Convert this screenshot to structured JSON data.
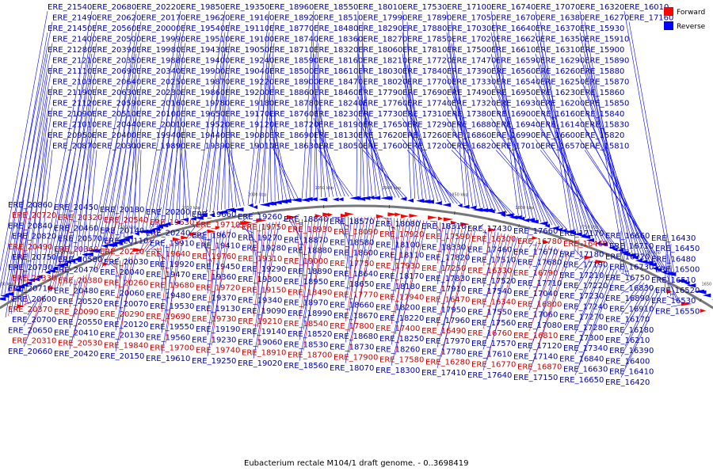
{
  "caption": "Eubacterium rectale M104/1 draft genome. - 0..3698419",
  "legend": [
    {
      "label": "Forward",
      "color": "#ff0000"
    },
    {
      "label": "Reverse",
      "color": "#0000ff"
    }
  ],
  "colors": {
    "forward": "#ff0000",
    "reverse": "#0000ff",
    "backbone": "#777777"
  },
  "ticks": [
    "2200 kbp",
    "2150 kbp",
    "2100 kbp",
    "2050 kbp",
    "2000 kbp",
    "1950 kbp",
    "1900 kbp",
    "1850 kbp",
    "1800 kbp",
    "1750 kbp",
    "1700 kbp",
    "1650 kbp"
  ],
  "top_labels": [
    "ERE_21540",
    "ERE_21490",
    "ERE_21450",
    "ERE_21400",
    "ERE_21280",
    "ERE_21210",
    "ERE_21110",
    "ERE_21030",
    "ERE_21190",
    "ERE_21120",
    "ERE_21090",
    "ERE_21010",
    "ERE_20950",
    "ERE_20870",
    "ERE_20680",
    "ERE_20620",
    "ERE_20560",
    "ERE_20500",
    "ERE_20390",
    "ERE_20350",
    "ERE_20690",
    "ERE_20640",
    "ERE_20630",
    "ERE_20590",
    "ERE_20510",
    "ERE_20440",
    "ERE_20400",
    "ERE_20300",
    "ERE_20220",
    "ERE_20170",
    "ERE_20000",
    "ERE_19990",
    "ERE_19980",
    "ERE_19880",
    "ERE_20340",
    "ERE_20250",
    "ERE_20230",
    "ERE_20160",
    "ERE_20100",
    "ERE_20010",
    "ERE_19940",
    "ERE_19890",
    "ERE_19850",
    "ERE_19620",
    "ERE_19540",
    "ERE_19510",
    "ERE_19430",
    "ERE_19400",
    "ERE_19900",
    "ERE_19870",
    "ERE_19860",
    "ERE_19780",
    "ERE_19650",
    "ERE_19520",
    "ERE_19440",
    "ERE_19390",
    "ERE_19350",
    "ERE_19160",
    "ERE_19110",
    "ERE_19100",
    "ERE_19050",
    "ERE_19240",
    "ERE_19040",
    "ERE_19220",
    "ERE_19200",
    "ERE_19180",
    "ERE_19170",
    "ERE_19120",
    "ERE_19080",
    "ERE_19010",
    "ERE_18960",
    "ERE_18920",
    "ERE_18770",
    "ERE_18740",
    "ERE_18710",
    "ERE_18590",
    "ERE_18500",
    "ERE_18900",
    "ERE_18860",
    "ERE_18780",
    "ERE_18760",
    "ERE_18720",
    "ERE_18690",
    "ERE_18630",
    "ERE_18550",
    "ERE_18510",
    "ERE_18480",
    "ERE_18360",
    "ERE_18320",
    "ERE_18160",
    "ERE_18610",
    "ERE_18470",
    "ERE_18460",
    "ERE_18240",
    "ERE_18230",
    "ERE_18190",
    "ERE_18130",
    "ERE_18050",
    "ERE_18010",
    "ERE_17990",
    "ERE_18290",
    "ERE_18270",
    "ERE_18060",
    "ERE_18210",
    "ERE_18030",
    "ERE_18020",
    "ERE_17790",
    "ERE_17760",
    "ERE_17730",
    "ERE_17650",
    "ERE_17620",
    "ERE_17600",
    "ERE_17530",
    "ERE_17890",
    "ERE_17880",
    "ERE_17850",
    "ERE_17810",
    "ERE_17720",
    "ERE_17840",
    "ERE_17700",
    "ERE_17690",
    "ERE_17740",
    "ERE_17310",
    "ERE_17290",
    "ERE_17260",
    "ERE_17200",
    "ERE_17100",
    "ERE_17050",
    "ERE_17030",
    "ERE_17020",
    "ERE_17500",
    "ERE_17470",
    "ERE_17390",
    "ERE_17330",
    "ERE_17490",
    "ERE_17320",
    "ERE_17380",
    "ERE_16880",
    "ERE_16860",
    "ERE_16820",
    "ERE_16740",
    "ERE_16700",
    "ERE_16640",
    "ERE_16620",
    "ERE_16610",
    "ERE_16590",
    "ERE_16560",
    "ERE_16540",
    "ERE_16950",
    "ERE_16930",
    "ERE_16900",
    "ERE_16940",
    "ERE_16990",
    "ERE_17010",
    "ERE_17070",
    "ERE_16380",
    "ERE_16370",
    "ERE_16350",
    "ERE_16310",
    "ERE_16290",
    "ERE_16260",
    "ERE_16250",
    "ERE_16230",
    "ERE_16200",
    "ERE_16160",
    "ERE_16140",
    "ERE_16600",
    "ERE_16570",
    "ERE_16320",
    "ERE_16270",
    "ERE_15930",
    "ERE_15910",
    "ERE_15900",
    "ERE_15890",
    "ERE_15880",
    "ERE_15870",
    "ERE_15860",
    "ERE_15850",
    "ERE_15840",
    "ERE_15830",
    "ERE_15820",
    "ERE_15810",
    "ERE_16010",
    "ERE_17160"
  ],
  "bottom_blue": [
    "ERE_20860",
    "ERE_20840",
    "ERE_20820",
    "ERE_20750",
    "ERE_20730",
    "ERE_20710",
    "ERE_20600",
    "ERE_20700",
    "ERE_20650",
    "ERE_20660",
    "ERE_20450",
    "ERE_20460",
    "ERE_20570",
    "ERE_20580",
    "ERE_20470",
    "ERE_20480",
    "ERE_20520",
    "ERE_20550",
    "ERE_20410",
    "ERE_20420",
    "ERE_20180",
    "ERE_20140",
    "ERE_20110",
    "ERE_20030",
    "ERE_20040",
    "ERE_20060",
    "ERE_20070",
    "ERE_20120",
    "ERE_20130",
    "ERE_20150",
    "ERE_20200",
    "ERE_20240",
    "ERE_19910",
    "ERE_19920",
    "ERE_19470",
    "ERE_19480",
    "ERE_19530",
    "ERE_19550",
    "ERE_19560",
    "ERE_19610",
    "ERE_19660",
    "ERE_19670",
    "ERE_19410",
    "ERE_19450",
    "ERE_19360",
    "ERE_19370",
    "ERE_19130",
    "ERE_19190",
    "ERE_19230",
    "ERE_19250",
    "ERE_19260",
    "ERE_19270",
    "ERE_19280",
    "ERE_19290",
    "ERE_19300",
    "ERE_19340",
    "ERE_19090",
    "ERE_19140",
    "ERE_19060",
    "ERE_19020",
    "ERE_18840",
    "ERE_18870",
    "ERE_18880",
    "ERE_18890",
    "ERE_18950",
    "ERE_18970",
    "ERE_18990",
    "ERE_18520",
    "ERE_18530",
    "ERE_18560",
    "ERE_18570",
    "ERE_18580",
    "ERE_18600",
    "ERE_18640",
    "ERE_18650",
    "ERE_18660",
    "ERE_18670",
    "ERE_18680",
    "ERE_18730",
    "ERE_18070",
    "ERE_18080",
    "ERE_18100",
    "ERE_18110",
    "ERE_18170",
    "ERE_18180",
    "ERE_18200",
    "ERE_18220",
    "ERE_18250",
    "ERE_18260",
    "ERE_18300",
    "ERE_18310",
    "ERE_18330",
    "ERE_17820",
    "ERE_17830",
    "ERE_17910",
    "ERE_17950",
    "ERE_17960",
    "ERE_17970",
    "ERE_17780",
    "ERE_17410",
    "ERE_17430",
    "ERE_17460",
    "ERE_17510",
    "ERE_17520",
    "ERE_17540",
    "ERE_17550",
    "ERE_17560",
    "ERE_17570",
    "ERE_17610",
    "ERE_17640",
    "ERE_17660",
    "ERE_17670",
    "ERE_17680",
    "ERE_17710",
    "ERE_17040",
    "ERE_17060",
    "ERE_17080",
    "ERE_17120",
    "ERE_17140",
    "ERE_17150",
    "ERE_17170",
    "ERE_17180",
    "ERE_17190",
    "ERE_17210",
    "ERE_17220",
    "ERE_17230",
    "ERE_17240",
    "ERE_17270",
    "ERE_17280",
    "ERE_17300",
    "ERE_17340",
    "ERE_16840",
    "ERE_16630",
    "ERE_16650",
    "ERE_16660",
    "ERE_16710",
    "ERE_16720",
    "ERE_16730",
    "ERE_16750",
    "ERE_16830",
    "ERE_16890",
    "ERE_16910",
    "ERE_16170",
    "ERE_16180",
    "ERE_16210",
    "ERE_16390",
    "ERE_16400",
    "ERE_16410",
    "ERE_16420",
    "ERE_16430",
    "ERE_16450",
    "ERE_16480",
    "ERE_16500",
    "ERE_16510",
    "ERE_16520",
    "ERE_16530",
    "ERE_16550"
  ],
  "bottom_red": [
    "ERE_20720",
    "ERE_20490",
    "ERE_20330",
    "ERE_20370",
    "ERE_20310",
    "ERE_20320",
    "ERE_20360",
    "ERE_20380",
    "ERE_20090",
    "ERE_20530",
    "ERE_20540",
    "ERE_20210",
    "ERE_20260",
    "ERE_20290",
    "ERE_19840",
    "ERE_19630",
    "ERE_19640",
    "ERE_19680",
    "ERE_19690",
    "ERE_19700",
    "ERE_19710",
    "ERE_19760",
    "ERE_19720",
    "ERE_19730",
    "ERE_19740",
    "ERE_19750",
    "ERE_19310",
    "ERE_19150",
    "ERE_19210",
    "ERE_18910",
    "ERE_18930",
    "ERE_19000",
    "ERE_18490",
    "ERE_18540",
    "ERE_18700",
    "ERE_18090",
    "ERE_17750",
    "ERE_17770",
    "ERE_17800",
    "ERE_17900",
    "ERE_17920",
    "ERE_17930",
    "ERE_17940",
    "ERE_17400",
    "ERE_17580",
    "ERE_17590",
    "ERE_17250",
    "ERE_16470",
    "ERE_16490",
    "ERE_16280",
    "ERE_16300",
    "ERE_16330",
    "ERE_16340",
    "ERE_16760",
    "ERE_16770",
    "ERE_16780",
    "ERE_16790",
    "ERE_16800",
    "ERE_16810",
    "ERE_16870",
    "ERE_16460"
  ]
}
